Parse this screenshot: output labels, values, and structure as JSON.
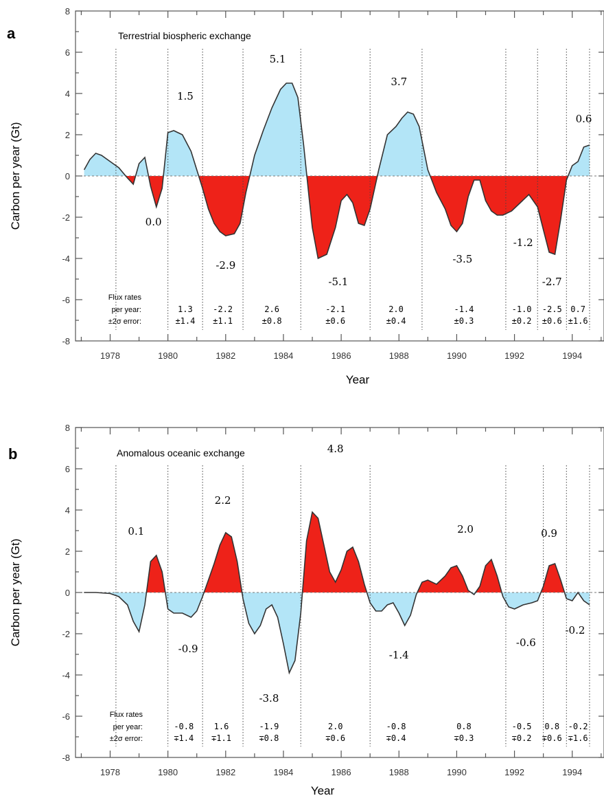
{
  "colors": {
    "positive": "#b3e5f7",
    "negative": "#ee2219",
    "ocean_positive": "#ee2219",
    "ocean_negative": "#b3e5f7"
  },
  "chart_data": [
    {
      "panel": "a",
      "type": "area",
      "title": "Terrestrial biospheric exchange",
      "xlabel": "Year",
      "ylabel": "Carbon per year (Gt)",
      "xlim": [
        1976.8,
        1995.1
      ],
      "ylim": [
        -8,
        8
      ],
      "x_ticks": [
        "1978",
        "1980",
        "1982",
        "1984",
        "1986",
        "1988",
        "1990",
        "1992",
        "1994"
      ],
      "y_ticks": [
        "8",
        "6",
        "4",
        "2",
        "0",
        "-2",
        "-4",
        "-6",
        "-8"
      ],
      "grid": false,
      "positive_fill": "light-blue",
      "negative_fill": "red",
      "dividers": [
        1978.2,
        1980.0,
        1981.2,
        1982.6,
        1984.6,
        1987.0,
        1988.8,
        1991.7,
        1992.8,
        1993.8,
        1994.6
      ],
      "series": [
        {
          "x": [
            1977.1,
            1977.3,
            1977.5,
            1977.7,
            1978.0,
            1978.3,
            1978.6,
            1978.8,
            1979.0,
            1979.2,
            1979.4,
            1979.6,
            1979.8,
            1980.0,
            1980.2,
            1980.5,
            1980.8,
            1981.0,
            1981.2,
            1981.4,
            1981.6,
            1981.8,
            1982.0,
            1982.3,
            1982.5,
            1982.7,
            1983.0,
            1983.3,
            1983.6,
            1983.9,
            1984.1,
            1984.3,
            1984.5,
            1984.7,
            1984.9,
            1985.0,
            1985.2,
            1985.5,
            1985.8,
            1986.0,
            1986.2,
            1986.4,
            1986.6,
            1986.8,
            1987.0,
            1987.3,
            1987.6,
            1987.9,
            1988.1,
            1988.3,
            1988.5,
            1988.7,
            1989.0,
            1989.3,
            1989.6,
            1989.8,
            1990.0,
            1990.2,
            1990.4,
            1990.6,
            1990.8,
            1991.0,
            1991.2,
            1991.4,
            1991.6,
            1991.9,
            1992.2,
            1992.5,
            1992.8,
            1993.0,
            1993.2,
            1993.4,
            1993.6,
            1993.8,
            1994.0,
            1994.2,
            1994.4,
            1994.6
          ],
          "y": [
            0.3,
            0.8,
            1.1,
            1.0,
            0.7,
            0.4,
            -0.1,
            -0.4,
            0.6,
            0.9,
            -0.5,
            -1.5,
            -0.6,
            2.1,
            2.2,
            2.0,
            1.2,
            0.3,
            -0.6,
            -1.6,
            -2.3,
            -2.7,
            -2.9,
            -2.8,
            -2.3,
            -0.8,
            1.0,
            2.2,
            3.3,
            4.2,
            4.5,
            4.5,
            3.8,
            1.5,
            -1.2,
            -2.5,
            -4.0,
            -3.8,
            -2.5,
            -1.2,
            -0.9,
            -1.3,
            -2.3,
            -2.4,
            -1.6,
            0.3,
            2.0,
            2.4,
            2.8,
            3.1,
            3.0,
            2.4,
            0.3,
            -0.8,
            -1.6,
            -2.4,
            -2.7,
            -2.3,
            -1.0,
            -0.2,
            -0.2,
            -1.2,
            -1.7,
            -1.9,
            -1.9,
            -1.7,
            -1.3,
            -0.9,
            -1.5,
            -2.6,
            -3.7,
            -3.8,
            -2.1,
            -0.2,
            0.5,
            0.7,
            1.4,
            1.5
          ]
        }
      ],
      "period_labels": [
        {
          "text": "0.0",
          "x": 1979.5,
          "y": -2.4
        },
        {
          "text": "1.5",
          "x": 1980.6,
          "y": 3.7
        },
        {
          "text": "-2.9",
          "x": 1982.0,
          "y": -4.5
        },
        {
          "text": "5.1",
          "x": 1983.8,
          "y": 5.5
        },
        {
          "text": "-5.1",
          "x": 1985.9,
          "y": -5.3
        },
        {
          "text": "3.7",
          "x": 1988.0,
          "y": 4.4
        },
        {
          "text": "-3.5",
          "x": 1990.2,
          "y": -4.2
        },
        {
          "text": "-1.2",
          "x": 1992.3,
          "y": -3.4
        },
        {
          "text": "-2.7",
          "x": 1993.3,
          "y": -5.3
        },
        {
          "text": "0.6",
          "x": 1994.4,
          "y": 2.6
        }
      ],
      "flux_header": [
        "Flux rates",
        "per year:",
        "±2σ error:"
      ],
      "flux_rates": [
        {
          "x": 1980.6,
          "rate": "1.3",
          "err": "±1.4"
        },
        {
          "x": 1981.9,
          "rate": "-2.2",
          "err": "±1.1"
        },
        {
          "x": 1983.6,
          "rate": "2.6",
          "err": "±0.8"
        },
        {
          "x": 1985.8,
          "rate": "-2.1",
          "err": "±0.6"
        },
        {
          "x": 1987.9,
          "rate": "2.0",
          "err": "±0.4"
        },
        {
          "x": 1990.25,
          "rate": "-1.4",
          "err": "±0.3"
        },
        {
          "x": 1992.25,
          "rate": "-1.0",
          "err": "±0.2"
        },
        {
          "x": 1993.3,
          "rate": "-2.5",
          "err": "±0.6"
        },
        {
          "x": 1994.2,
          "rate": "0.7",
          "err": "±1.6"
        }
      ]
    },
    {
      "panel": "b",
      "type": "area",
      "title": "Anomalous oceanic exchange",
      "xlabel": "Year",
      "ylabel": "Carbon per year (Gt)",
      "xlim": [
        1976.8,
        1995.1
      ],
      "ylim": [
        -8,
        8
      ],
      "x_ticks": [
        "1978",
        "1980",
        "1982",
        "1984",
        "1986",
        "1988",
        "1990",
        "1992",
        "1994"
      ],
      "y_ticks": [
        "8",
        "6",
        "4",
        "2",
        "0",
        "-2",
        "-4",
        "-6",
        "-8"
      ],
      "grid": false,
      "positive_fill": "red",
      "negative_fill": "light-blue",
      "dividers": [
        1978.2,
        1980.0,
        1981.2,
        1982.6,
        1984.6,
        1987.0,
        1991.7,
        1993.0,
        1993.8,
        1994.6
      ],
      "series": [
        {
          "x": [
            1977.1,
            1977.5,
            1978.0,
            1978.3,
            1978.6,
            1978.8,
            1979.0,
            1979.2,
            1979.4,
            1979.6,
            1979.8,
            1980.0,
            1980.2,
            1980.5,
            1980.8,
            1981.0,
            1981.2,
            1981.4,
            1981.6,
            1981.8,
            1982.0,
            1982.2,
            1982.4,
            1982.6,
            1982.8,
            1983.0,
            1983.2,
            1983.4,
            1983.6,
            1983.8,
            1984.0,
            1984.2,
            1984.4,
            1984.6,
            1984.8,
            1985.0,
            1985.2,
            1985.4,
            1985.6,
            1985.8,
            1986.0,
            1986.2,
            1986.4,
            1986.6,
            1986.8,
            1987.0,
            1987.2,
            1987.4,
            1987.6,
            1987.8,
            1988.0,
            1988.2,
            1988.4,
            1988.6,
            1988.8,
            1989.0,
            1989.3,
            1989.6,
            1989.8,
            1990.0,
            1990.2,
            1990.4,
            1990.6,
            1990.8,
            1991.0,
            1991.2,
            1991.4,
            1991.6,
            1991.8,
            1992.0,
            1992.3,
            1992.6,
            1992.8,
            1993.0,
            1993.2,
            1993.4,
            1993.6,
            1993.8,
            1994.0,
            1994.2,
            1994.4,
            1994.6
          ],
          "y": [
            0.0,
            0.0,
            -0.05,
            -0.2,
            -0.6,
            -1.4,
            -1.9,
            -0.6,
            1.5,
            1.8,
            1.0,
            -0.8,
            -1.0,
            -1.0,
            -1.2,
            -0.9,
            -0.2,
            0.6,
            1.4,
            2.3,
            2.9,
            2.7,
            1.5,
            -0.3,
            -1.5,
            -2.0,
            -1.6,
            -0.8,
            -0.6,
            -1.2,
            -2.5,
            -3.9,
            -3.3,
            -1.0,
            2.5,
            3.9,
            3.6,
            2.3,
            1.0,
            0.5,
            1.1,
            2.0,
            2.2,
            1.5,
            0.4,
            -0.5,
            -0.9,
            -0.9,
            -0.6,
            -0.5,
            -1.0,
            -1.6,
            -1.1,
            -0.1,
            0.5,
            0.6,
            0.4,
            0.8,
            1.2,
            1.3,
            0.8,
            0.1,
            -0.1,
            0.3,
            1.3,
            1.6,
            0.8,
            -0.2,
            -0.7,
            -0.8,
            -0.6,
            -0.5,
            -0.4,
            0.3,
            1.3,
            1.4,
            0.6,
            -0.3,
            -0.4,
            0.0,
            -0.4,
            -0.6
          ]
        }
      ],
      "period_labels": [
        {
          "text": "0.1",
          "x": 1978.9,
          "y": 2.8
        },
        {
          "text": "-0.9",
          "x": 1980.7,
          "y": -2.9
        },
        {
          "text": "2.2",
          "x": 1981.9,
          "y": 4.3
        },
        {
          "text": "-3.8",
          "x": 1983.5,
          "y": -5.3
        },
        {
          "text": "4.8",
          "x": 1985.8,
          "y": 6.8
        },
        {
          "text": "-1.4",
          "x": 1988.0,
          "y": -3.2
        },
        {
          "text": "2.0",
          "x": 1990.3,
          "y": 2.9
        },
        {
          "text": "-0.6",
          "x": 1992.4,
          "y": -2.6
        },
        {
          "text": "0.9",
          "x": 1993.2,
          "y": 2.7
        },
        {
          "text": "-0.2",
          "x": 1994.1,
          "y": -2.0
        }
      ],
      "flux_header": [
        "Flux rates",
        "per year:",
        "±2σ error:"
      ],
      "flux_rates": [
        {
          "x": 1980.55,
          "rate": "-0.8",
          "err": "∓1.4"
        },
        {
          "x": 1981.85,
          "rate": "1.6",
          "err": "∓1.1"
        },
        {
          "x": 1983.5,
          "rate": "-1.9",
          "err": "∓0.8"
        },
        {
          "x": 1985.8,
          "rate": "2.0",
          "err": "∓0.6"
        },
        {
          "x": 1987.9,
          "rate": "-0.8",
          "err": "∓0.4"
        },
        {
          "x": 1990.25,
          "rate": "0.8",
          "err": "∓0.3"
        },
        {
          "x": 1992.25,
          "rate": "-0.5",
          "err": "∓0.2"
        },
        {
          "x": 1993.3,
          "rate": "0.8",
          "err": "∓0.6"
        },
        {
          "x": 1994.2,
          "rate": "-0.2",
          "err": "∓1.6"
        }
      ]
    }
  ]
}
